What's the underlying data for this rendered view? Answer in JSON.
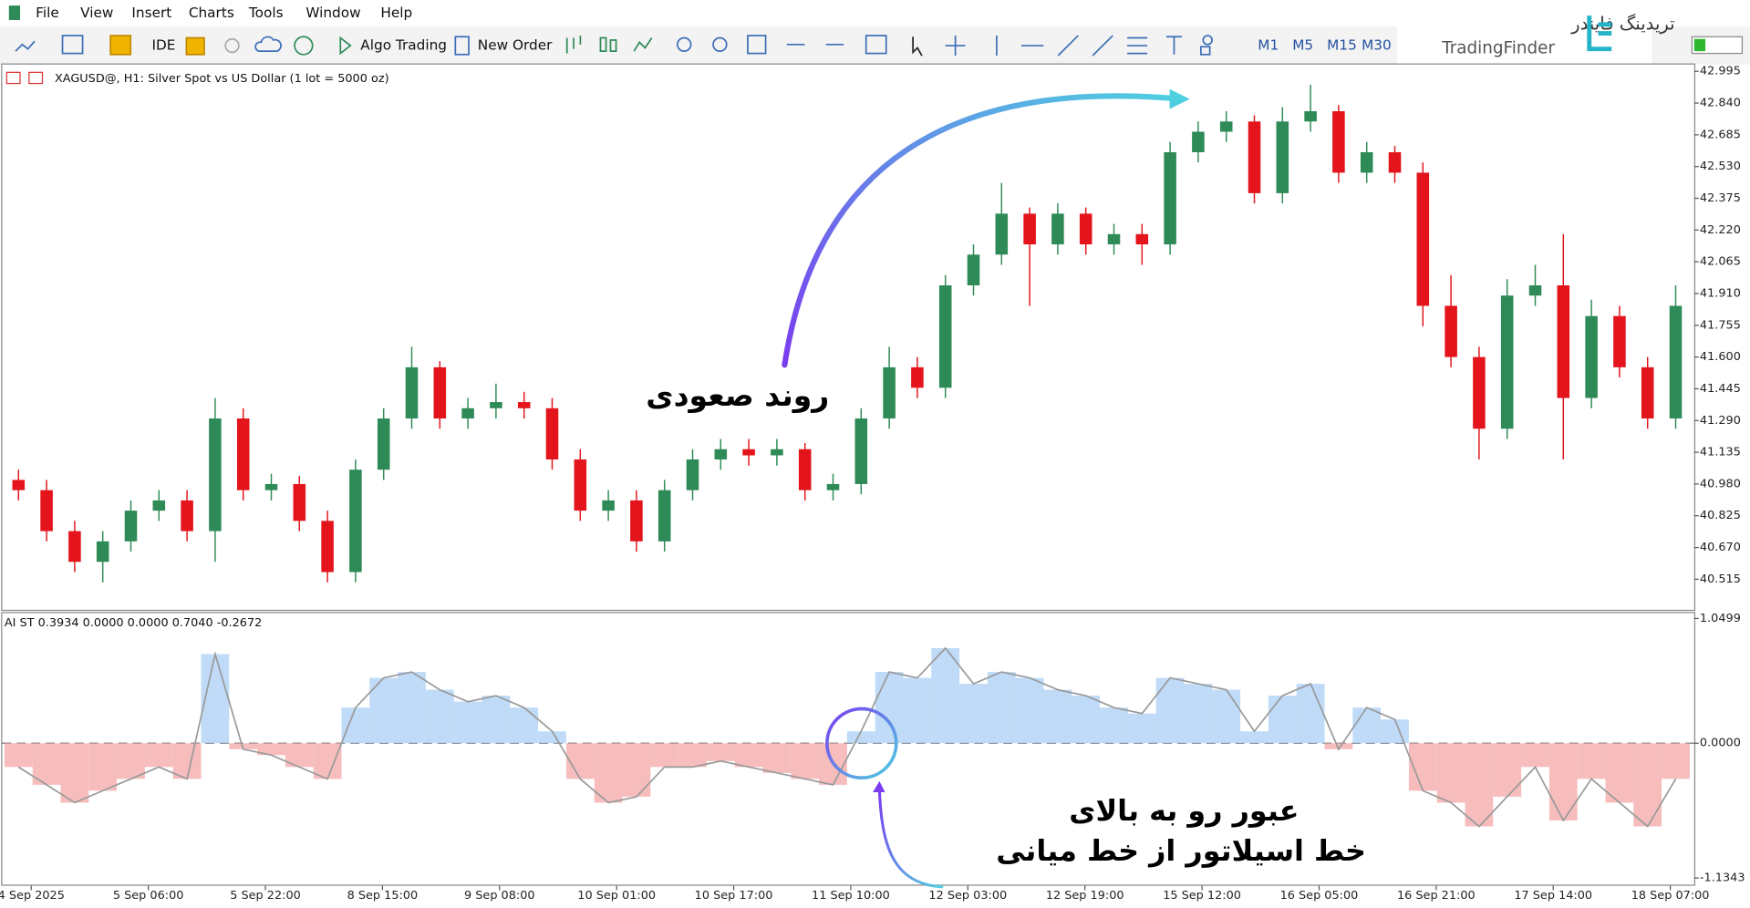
{
  "menu": [
    "File",
    "View",
    "Insert",
    "Charts",
    "Tools",
    "Window",
    "Help"
  ],
  "toolbar": {
    "ide": "IDE",
    "algo_trading": "Algo Trading",
    "new_order": "New Order",
    "timeframes": [
      "M1",
      "M5",
      "M15",
      "M30"
    ]
  },
  "logo": {
    "persian": "تریدینگ فایندر",
    "english": "TradingFinder"
  },
  "annotations": [
    "روند صعودی",
    "عبور رو به بالای",
    "خط اسیلاتور از خط میانی"
  ],
  "time_axis": [
    "4 Sep 2025",
    "5 Sep 06:00",
    "5 Sep 22:00",
    "8 Sep 15:00",
    "9 Sep 08:00",
    "10 Sep 01:00",
    "10 Sep 17:00",
    "11 Sep 10:00",
    "12 Sep 03:00",
    "12 Sep 19:00",
    "15 Sep 12:00",
    "16 Sep 05:00",
    "16 Sep 21:00",
    "17 Sep 14:00",
    "18 Sep 07:00"
  ],
  "chart_data": [
    {
      "type": "candlestick",
      "title": "XAGUSD@, H1:  Silver Spot vs US Dollar (1 lot = 5000 oz)",
      "up_color": "#2e8b57",
      "down_color": "#e3141b",
      "ylim": [
        40.366,
        43.028
      ],
      "yticks": [
        42.995,
        {
          "value": 42.84,
          "label": "42.840"
        },
        42.685,
        {
          "value": 42.53,
          "label": "42.530"
        },
        42.375,
        {
          "value": 42.22,
          "label": "42.220"
        },
        42.065,
        {
          "value": 41.91,
          "label": "41.910"
        },
        41.755,
        {
          "value": 41.6,
          "label": "41.600"
        },
        41.445,
        {
          "value": 41.29,
          "label": "41.290"
        },
        41.135,
        {
          "value": 40.98,
          "label": "40.980"
        },
        40.825,
        {
          "value": 40.67,
          "label": "40.670"
        },
        40.515
      ],
      "open": [
        41.0,
        40.95,
        40.75,
        40.6,
        40.7,
        40.85,
        40.9,
        40.75,
        41.3,
        40.95,
        40.98,
        40.8,
        40.55,
        41.05,
        41.3,
        41.55,
        41.3,
        41.35,
        41.38,
        41.35,
        41.1,
        40.85,
        40.9,
        40.7,
        40.95,
        41.1,
        41.15,
        41.12,
        41.15,
        40.95,
        40.98,
        41.3,
        41.55,
        41.45,
        41.95,
        42.1,
        42.3,
        42.15,
        42.3,
        42.15,
        42.2,
        42.15,
        42.6,
        42.7,
        42.75,
        42.4,
        42.75,
        42.8,
        42.5,
        42.6,
        42.5,
        41.85,
        41.6,
        41.25,
        41.9,
        41.95,
        41.4,
        41.8,
        41.55,
        41.3
      ],
      "high": [
        41.05,
        41.0,
        40.8,
        40.75,
        40.9,
        40.95,
        40.95,
        41.4,
        41.35,
        41.03,
        41.02,
        40.85,
        41.1,
        41.35,
        41.65,
        41.58,
        41.4,
        41.47,
        41.43,
        41.4,
        41.15,
        40.95,
        40.95,
        41.0,
        41.15,
        41.2,
        41.2,
        41.2,
        41.18,
        41.03,
        41.35,
        41.65,
        41.6,
        42.0,
        42.15,
        42.45,
        42.33,
        42.35,
        42.33,
        42.25,
        42.25,
        42.65,
        42.75,
        42.8,
        42.78,
        42.82,
        42.93,
        42.83,
        42.65,
        42.63,
        42.55,
        42.0,
        41.65,
        41.98,
        42.05,
        42.2,
        41.88,
        41.85,
        41.6,
        41.95
      ],
      "low": [
        40.9,
        40.7,
        40.55,
        40.5,
        40.65,
        40.8,
        40.7,
        40.6,
        40.9,
        40.9,
        40.75,
        40.5,
        40.5,
        41.0,
        41.25,
        41.25,
        41.25,
        41.3,
        41.3,
        41.05,
        40.8,
        40.8,
        40.65,
        40.65,
        40.9,
        41.05,
        41.07,
        41.07,
        40.9,
        40.9,
        40.93,
        41.25,
        41.4,
        41.4,
        41.9,
        42.05,
        41.85,
        42.1,
        42.1,
        42.1,
        42.05,
        42.1,
        42.55,
        42.65,
        42.35,
        42.35,
        42.7,
        42.45,
        42.45,
        42.45,
        41.75,
        41.55,
        41.1,
        41.2,
        41.85,
        41.1,
        41.35,
        41.5,
        41.25,
        41.25
      ],
      "close": [
        40.95,
        40.75,
        40.6,
        40.7,
        40.85,
        40.9,
        40.75,
        41.3,
        40.95,
        40.98,
        40.8,
        40.55,
        41.05,
        41.3,
        41.55,
        41.3,
        41.35,
        41.38,
        41.35,
        41.1,
        40.85,
        40.9,
        40.7,
        40.95,
        41.1,
        41.15,
        41.12,
        41.15,
        40.95,
        40.98,
        41.3,
        41.55,
        41.45,
        41.95,
        42.1,
        42.3,
        42.15,
        42.3,
        42.15,
        42.2,
        42.15,
        42.6,
        42.7,
        42.75,
        42.4,
        42.75,
        42.8,
        42.5,
        42.6,
        42.5,
        41.85,
        41.6,
        41.25,
        41.9,
        41.95,
        41.4,
        41.8,
        41.55,
        41.3,
        41.85
      ]
    },
    {
      "type": "line",
      "title": "AI ST 0.3934 0.0000 0.0000 0.7040 -0.2672",
      "color": "#9a9a9a",
      "positive_color": "#a9cff5",
      "negative_color": "#f4a7a7",
      "ylim": [
        -1.19,
        1.095
      ],
      "yticks": [
        1.0499,
        {
          "value": 0,
          "label": "0.0000"
        },
        -1.1343
      ],
      "values": [
        -0.2,
        -0.35,
        -0.5,
        -0.4,
        -0.3,
        -0.2,
        -0.3,
        0.75,
        -0.05,
        -0.1,
        -0.2,
        -0.3,
        0.3,
        0.55,
        0.6,
        0.45,
        0.35,
        0.4,
        0.3,
        0.1,
        -0.3,
        -0.5,
        -0.45,
        -0.2,
        -0.2,
        -0.15,
        -0.2,
        -0.25,
        -0.3,
        -0.35,
        0.1,
        0.6,
        0.55,
        0.8,
        0.5,
        0.6,
        0.55,
        0.45,
        0.4,
        0.3,
        0.25,
        0.55,
        0.5,
        0.45,
        0.1,
        0.4,
        0.5,
        -0.05,
        0.3,
        0.2,
        -0.4,
        -0.5,
        -0.7,
        -0.45,
        -0.2,
        -0.65,
        -0.3,
        -0.5,
        -0.7,
        -0.3
      ]
    }
  ]
}
